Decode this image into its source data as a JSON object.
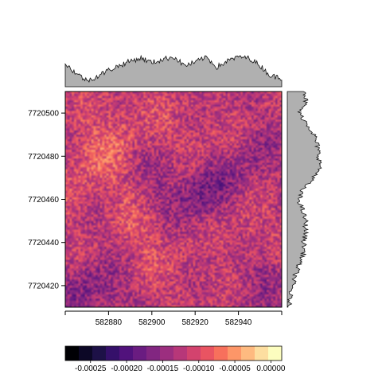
{
  "chart_data": {
    "type": "heatmap",
    "title": "",
    "xlabel": "",
    "ylabel": "",
    "x_ticks": [
      582880,
      582900,
      582920,
      582940
    ],
    "y_ticks": [
      7720420,
      7720440,
      7720460,
      7720480,
      7720500
    ],
    "xlim": [
      582860,
      582960
    ],
    "ylim": [
      7720410,
      7720510
    ],
    "colorbar": {
      "ticks": [
        -0.00025,
        -0.0002,
        -0.00015,
        -0.0001,
        -5e-05,
        0
      ],
      "tick_labels": [
        "-0.00025",
        "-0.00020",
        "-0.00015",
        "-0.00010",
        "-0.00005",
        "0.00000"
      ],
      "range": [
        -0.000285,
        1.5e-05
      ],
      "colors": [
        "#000004",
        "#0c0826",
        "#1d1147",
        "#35106a",
        "#51127c",
        "#6a1c81",
        "#822681",
        "#9c2e7f",
        "#b73779",
        "#d3436e",
        "#e95462",
        "#f7705c",
        "#fd9668",
        "#feba80",
        "#fddea0",
        "#fcfdbf"
      ]
    },
    "field": {
      "grid_resolution_m": 1,
      "value_range": [
        -0.000285,
        1.5e-05
      ],
      "lighter_regions": [
        "around y 7720480–7720490 on the left",
        "lower-left area near x 582870–582900, y 7720430–7720445",
        "right side near x 582935–582955, y 7720440–7720455"
      ],
      "darker_regions": [
        "around x 582925, y 7720460",
        "bottom-left near x 582875, y 7720415",
        "scattered patch near x 582920, y 7720425"
      ]
    },
    "marginal_top": {
      "description": "column means of the field, plotted as filled profile above the map",
      "x": [
        582860,
        582865,
        582870,
        582875,
        582880,
        582885,
        582890,
        582895,
        582900,
        582905,
        582910,
        582915,
        582920,
        582925,
        582930,
        582935,
        582940,
        582945,
        582950,
        582955,
        582960
      ],
      "values": [
        0.75,
        0.45,
        0.2,
        0.35,
        0.55,
        0.7,
        0.85,
        0.95,
        0.8,
        0.9,
        1.0,
        0.7,
        0.8,
        1.0,
        0.65,
        0.85,
        1.0,
        0.95,
        0.7,
        0.35,
        0.3
      ]
    },
    "marginal_right": {
      "description": "row means of the field, plotted as filled profile right of the map",
      "y": [
        7720510,
        7720505,
        7720500,
        7720495,
        7720490,
        7720485,
        7720480,
        7720475,
        7720470,
        7720465,
        7720460,
        7720455,
        7720450,
        7720445,
        7720440,
        7720435,
        7720430,
        7720425,
        7720420,
        7720415,
        7720410
      ],
      "values": [
        0.55,
        0.55,
        0.35,
        0.6,
        0.8,
        0.9,
        0.95,
        1.0,
        0.8,
        0.45,
        0.35,
        0.45,
        0.55,
        0.55,
        0.5,
        0.5,
        0.35,
        0.25,
        0.15,
        0.08,
        0.04
      ]
    }
  }
}
